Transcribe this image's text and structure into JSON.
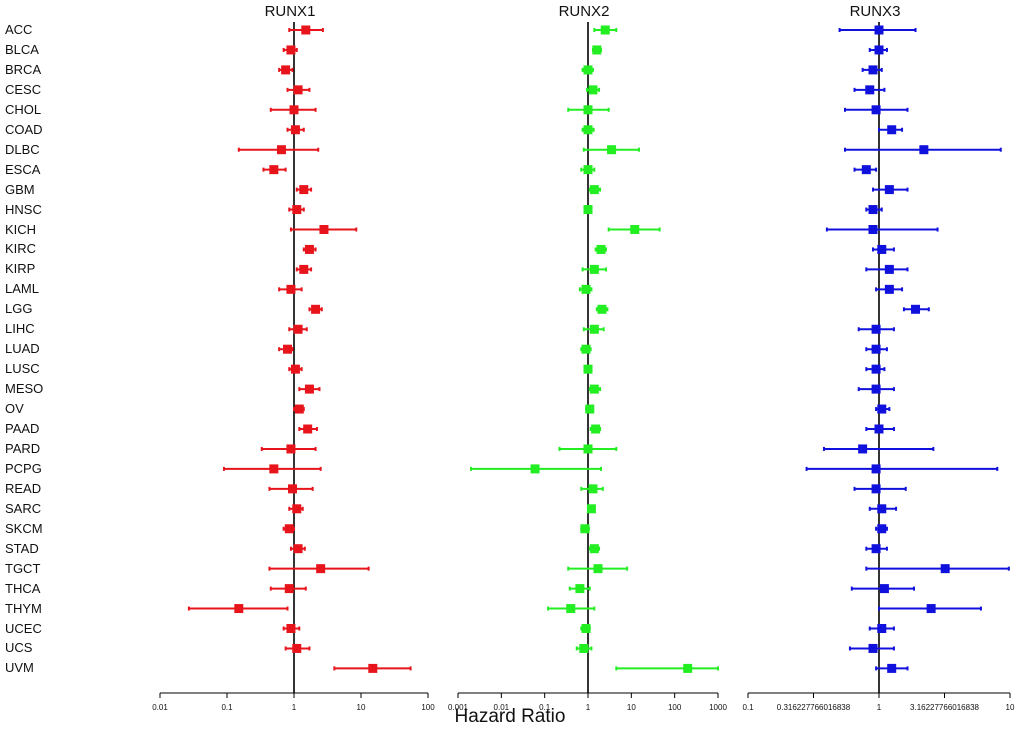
{
  "chart_data": {
    "type": "forest",
    "xlabel": "Hazard Ratio",
    "categories": [
      "ACC",
      "BLCA",
      "BRCA",
      "CESC",
      "CHOL",
      "COAD",
      "DLBC",
      "ESCA",
      "GBM",
      "HNSC",
      "KICH",
      "KIRC",
      "KIRP",
      "LAML",
      "LGG",
      "LIHC",
      "LUAD",
      "LUSC",
      "MESO",
      "OV",
      "PAAD",
      "PARD",
      "PCPG",
      "READ",
      "SARC",
      "SKCM",
      "STAD",
      "TGCT",
      "THCA",
      "THYM",
      "UCEC",
      "UCS",
      "UVM"
    ],
    "panels": [
      {
        "title": "RUNX1",
        "color": "#e8141c",
        "xscale": "log",
        "xlim": [
          0.01,
          100
        ],
        "ticks": [
          "0.01",
          "0.1",
          "1",
          "10",
          "100"
        ],
        "tick_values": [
          0.01,
          0.1,
          1,
          10,
          100
        ],
        "hr": [
          1.5,
          0.9,
          0.75,
          1.15,
          1.0,
          1.05,
          0.65,
          0.5,
          1.4,
          1.1,
          2.8,
          1.7,
          1.4,
          0.9,
          2.1,
          1.15,
          0.8,
          1.05,
          1.7,
          1.2,
          1.6,
          0.9,
          0.5,
          0.95,
          1.1,
          0.85,
          1.15,
          2.5,
          0.85,
          0.15,
          0.9,
          1.1,
          15
        ],
        "lower": [
          0.85,
          0.7,
          0.6,
          0.8,
          0.45,
          0.8,
          0.15,
          0.35,
          1.1,
          0.85,
          0.9,
          1.4,
          1.1,
          0.6,
          1.7,
          0.85,
          0.6,
          0.85,
          1.2,
          1.0,
          1.2,
          0.33,
          0.09,
          0.43,
          0.85,
          0.7,
          0.9,
          0.43,
          0.45,
          0.027,
          0.7,
          0.75,
          4.0
        ],
        "upper": [
          2.7,
          1.1,
          0.95,
          1.7,
          2.1,
          1.4,
          2.3,
          0.75,
          1.8,
          1.4,
          8.5,
          2.1,
          1.8,
          1.3,
          2.6,
          1.55,
          0.95,
          1.3,
          2.4,
          1.4,
          2.2,
          2.1,
          2.5,
          1.9,
          1.35,
          1.0,
          1.45,
          13,
          1.5,
          0.8,
          1.2,
          1.7,
          55
        ]
      },
      {
        "title": "RUNX2",
        "color": "#22ee22",
        "xscale": "log",
        "xlim": [
          0.001,
          1000
        ],
        "ticks": [
          "0.001",
          "0.01",
          "0.1",
          "1",
          "10",
          "100",
          "1000"
        ],
        "tick_values": [
          0.001,
          0.01,
          0.1,
          1,
          10,
          100,
          1000
        ],
        "hr": [
          2.5,
          1.6,
          1.0,
          1.3,
          1.0,
          1.0,
          3.5,
          1.0,
          1.4,
          1.0,
          12,
          2.0,
          1.4,
          0.9,
          2.1,
          1.4,
          0.9,
          1.0,
          1.4,
          1.1,
          1.5,
          1.0,
          0.06,
          1.3,
          1.2,
          0.85,
          1.4,
          1.7,
          0.65,
          0.4,
          0.9,
          0.8,
          200
        ],
        "lower": [
          1.4,
          1.3,
          0.75,
          0.95,
          0.35,
          0.75,
          0.8,
          0.7,
          1.1,
          0.85,
          3.0,
          1.5,
          0.75,
          0.65,
          1.6,
          0.8,
          0.7,
          0.85,
          1.1,
          0.9,
          1.15,
          0.22,
          0.002,
          0.7,
          1.0,
          0.7,
          1.1,
          0.35,
          0.38,
          0.12,
          0.7,
          0.55,
          4.5
        ],
        "upper": [
          4.5,
          2.0,
          1.3,
          1.8,
          3.0,
          1.35,
          15,
          1.4,
          1.9,
          1.2,
          45,
          2.6,
          2.6,
          1.2,
          2.8,
          2.3,
          1.15,
          1.2,
          1.9,
          1.3,
          1.9,
          4.5,
          2.0,
          2.2,
          1.4,
          1.05,
          1.8,
          8.0,
          1.1,
          1.4,
          1.1,
          1.2,
          1000
        ]
      },
      {
        "title": "RUNX3",
        "color": "#1111dd",
        "xscale": "log",
        "xlim": [
          0.1,
          10
        ],
        "ticks": [
          "0.1",
          "0.316227766016838",
          "1",
          "3.16227766016838",
          "10"
        ],
        "tick_values": [
          0.1,
          0.316227766016838,
          1,
          3.16227766016838,
          10
        ],
        "hr": [
          1.0,
          1.0,
          0.9,
          0.85,
          0.95,
          1.25,
          2.2,
          0.8,
          1.2,
          0.9,
          0.9,
          1.05,
          1.2,
          1.2,
          1.9,
          0.95,
          0.95,
          0.95,
          0.95,
          1.05,
          1.0,
          0.75,
          0.95,
          0.95,
          1.05,
          1.05,
          0.95,
          3.2,
          1.1,
          2.5,
          1.05,
          0.9,
          1.25
        ],
        "lower": [
          0.5,
          0.85,
          0.75,
          0.65,
          0.55,
          1.0,
          0.55,
          0.65,
          0.9,
          0.8,
          0.4,
          0.9,
          0.8,
          0.95,
          1.55,
          0.7,
          0.8,
          0.8,
          0.7,
          0.95,
          0.8,
          0.38,
          0.28,
          0.65,
          0.85,
          0.95,
          0.8,
          0.8,
          0.62,
          1.0,
          0.85,
          0.6,
          0.95
        ],
        "upper": [
          1.9,
          1.15,
          1.05,
          1.1,
          1.65,
          1.5,
          8.5,
          0.95,
          1.65,
          1.05,
          2.8,
          1.3,
          1.65,
          1.5,
          2.4,
          1.3,
          1.15,
          1.1,
          1.3,
          1.2,
          1.3,
          2.6,
          8.0,
          1.6,
          1.35,
          1.15,
          1.15,
          9.8,
          1.85,
          6.0,
          1.3,
          1.3,
          1.65
        ]
      }
    ]
  }
}
